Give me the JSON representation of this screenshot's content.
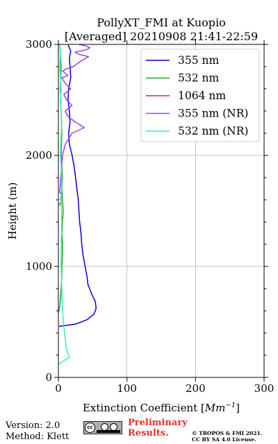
{
  "chart_data": {
    "type": "line",
    "title_line1": "PollyXT_FMI at Kuopio",
    "title_line2": "[Averaged] 20210908 21:41-22:59",
    "xlabel_text": "Extinction Coefficient [",
    "xlabel_unit_base": "Mm",
    "xlabel_unit_exp": "−1",
    "xlabel_close": "]",
    "ylabel": "Height (m)",
    "xlim": [
      0,
      300
    ],
    "ylim": [
      0,
      3000
    ],
    "xticks": [
      0,
      100,
      200,
      300
    ],
    "yticks": [
      0,
      1000,
      2000,
      3000
    ],
    "xtick_labels": [
      "0",
      "100",
      "200",
      "300"
    ],
    "ytick_labels": [
      "0",
      "1000",
      "2000",
      "3000"
    ],
    "grid": true,
    "legend_position": "top-right",
    "series": [
      {
        "name": "355 nm",
        "color": "#0000dd",
        "x": [
          1,
          25,
          42,
          52,
          55,
          54,
          48,
          43,
          42,
          39,
          36,
          34,
          33,
          31,
          30,
          29,
          27,
          25,
          23,
          20,
          16,
          15,
          17,
          16,
          14,
          15,
          18,
          17,
          16,
          18,
          14
        ],
        "y": [
          460,
          480,
          520,
          570,
          620,
          680,
          760,
          840,
          900,
          1000,
          1100,
          1200,
          1300,
          1400,
          1500,
          1600,
          1700,
          1800,
          1900,
          2000,
          2100,
          2200,
          2300,
          2400,
          2500,
          2600,
          2700,
          2800,
          2880,
          2940,
          3000
        ]
      },
      {
        "name": "532 nm",
        "color": "#1fa81f",
        "x": [
          0,
          2,
          3,
          4,
          5,
          5,
          6,
          6,
          5,
          6,
          7,
          6,
          5,
          6,
          5,
          4,
          5,
          4,
          3,
          4,
          3,
          2
        ],
        "y": [
          580,
          640,
          700,
          800,
          900,
          1000,
          1100,
          1200,
          1300,
          1400,
          1500,
          1600,
          1700,
          1800,
          1900,
          2000,
          2200,
          2400,
          2600,
          2800,
          2900,
          3000
        ]
      },
      {
        "name": "1064 nm",
        "color": "#d62728",
        "x": [],
        "y": []
      },
      {
        "name": "355 nm (NR)",
        "color": "#9d40f0",
        "x": [
          1,
          4,
          3,
          5,
          2,
          6,
          8,
          10,
          20,
          38,
          25,
          14,
          10,
          20,
          12,
          8,
          18,
          10,
          5,
          14,
          10,
          6,
          12,
          22,
          28,
          36,
          44,
          30,
          24,
          40,
          46,
          38,
          30
        ],
        "y": [
          1550,
          1580,
          1610,
          1640,
          1670,
          2000,
          2050,
          2100,
          2200,
          2250,
          2300,
          2350,
          2400,
          2450,
          2500,
          2550,
          2600,
          2650,
          2700,
          2720,
          2740,
          2760,
          2780,
          2800,
          2830,
          2860,
          2890,
          2910,
          2930,
          2950,
          2970,
          2990,
          3000
        ]
      },
      {
        "name": "532 nm (NR)",
        "color": "#3de8c8",
        "x": [
          0,
          8,
          16,
          12,
          9,
          6,
          5,
          4,
          4,
          5,
          4,
          5,
          3,
          4,
          5,
          4,
          3,
          4,
          3,
          2,
          3,
          2
        ],
        "y": [
          120,
          150,
          180,
          250,
          400,
          600,
          800,
          1000,
          1200,
          1400,
          1600,
          1800,
          2000,
          2200,
          2300,
          2400,
          2500,
          2600,
          2700,
          2800,
          2900,
          3000
        ]
      }
    ]
  },
  "footer": {
    "version": "Version: 2.0",
    "method": "Method: Klett",
    "preliminary_line1": "Preliminary",
    "preliminary_line2": "Results.",
    "copyright_line1": "© TROPOS & FMI 2021.",
    "copyright_line2": "CC BY SA 4.0 License.",
    "badge_cc": "cc"
  }
}
